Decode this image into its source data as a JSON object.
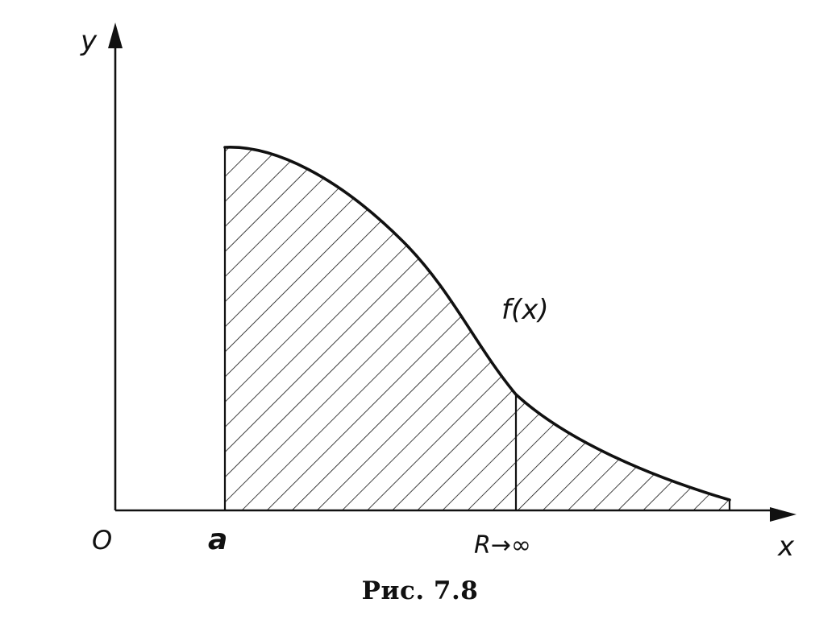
{
  "labels": {
    "y_axis": "y",
    "x_axis": "x",
    "origin": "O",
    "a": "a",
    "r_infinity": "R→∞",
    "function": "f(x)"
  },
  "caption": "Рис. 7.8"
}
